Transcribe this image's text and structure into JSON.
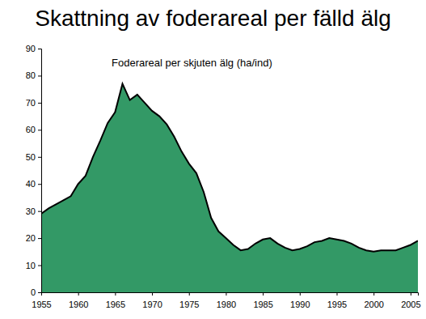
{
  "chart_data": {
    "type": "area",
    "title": "Skattning av foderareal per fälld älg",
    "annotations": [
      "Foderareal per skjuten älg (ha/ind)"
    ],
    "x": [
      1955,
      1956,
      1957,
      1958,
      1959,
      1960,
      1961,
      1962,
      1963,
      1964,
      1965,
      1966,
      1967,
      1968,
      1969,
      1970,
      1971,
      1972,
      1973,
      1974,
      1975,
      1976,
      1977,
      1978,
      1979,
      1980,
      1981,
      1982,
      1983,
      1984,
      1985,
      1986,
      1987,
      1988,
      1989,
      1990,
      1991,
      1992,
      1993,
      1994,
      1995,
      1996,
      1997,
      1998,
      1999,
      2000,
      2001,
      2002,
      2003,
      2004,
      2005,
      2006
    ],
    "values": [
      29,
      31,
      32.5,
      34,
      35.5,
      40,
      43,
      50,
      56,
      62.5,
      66.5,
      77,
      71,
      73,
      70,
      67,
      65,
      62,
      57.5,
      52,
      47.5,
      44,
      37,
      27.5,
      22.5,
      20,
      17.5,
      15.5,
      16,
      18,
      19.5,
      20,
      18,
      16.5,
      15.5,
      16,
      17,
      18.5,
      19,
      20,
      19.5,
      19,
      18,
      16.5,
      15.5,
      15,
      15.5,
      15.5,
      15.5,
      16.5,
      17.5,
      19
    ],
    "color": "#339966",
    "xlim": [
      1955,
      2006
    ],
    "xticks": [
      1955,
      1960,
      1965,
      1970,
      1975,
      1980,
      1985,
      1990,
      1995,
      2000,
      2005
    ],
    "ylim": [
      0,
      90
    ],
    "yticks": [
      0,
      10,
      20,
      30,
      40,
      50,
      60,
      70,
      80,
      90
    ]
  }
}
